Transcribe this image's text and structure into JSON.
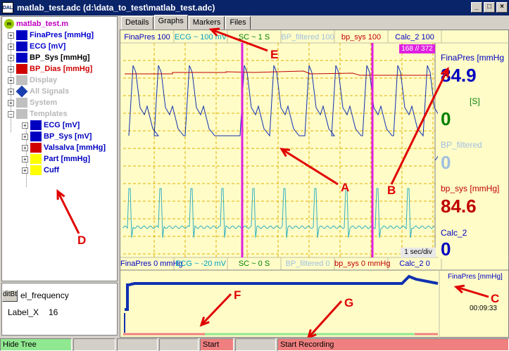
{
  "window": {
    "title": "matlab_test.adc  (d:\\data_to_test\\matlab_test.adc)",
    "app_icon": "app-icon",
    "minimize": "_",
    "maximize": "□",
    "close": "×"
  },
  "tree": {
    "root": "matlab_test.m",
    "items": [
      {
        "label": "FinaPres [mmHg]",
        "color": "#0000d0"
      },
      {
        "label": "ECG [mV]",
        "color": "#0000d0"
      },
      {
        "label": "BP_Sys [mmHg]",
        "color": "#000000"
      },
      {
        "label": "BP_Dias [mmHg]",
        "color": "#d00000"
      },
      {
        "label": "Display",
        "color": "#b8b8b8"
      },
      {
        "label": "All Signals",
        "color": "#b8b8b8"
      },
      {
        "label": "System",
        "color": "#b8b8b8"
      },
      {
        "label": "Templates",
        "color": "#b8b8b8"
      }
    ],
    "templates": [
      {
        "label": "ECG [mV]"
      },
      {
        "label": "BP_Sys [mV]"
      },
      {
        "label": "Valsalva [mmHg]"
      },
      {
        "label": "Part [mmHg]"
      },
      {
        "label": "Cuff"
      }
    ]
  },
  "left_bottom": {
    "edit_button": "ditBtn",
    "label_frequency": "el_frequency",
    "label_x_name": "Label_X",
    "label_x_value": "16"
  },
  "tabs": [
    "Details",
    "Graphs",
    "Markers",
    "Files"
  ],
  "active_tab": "Graphs",
  "top_headers": [
    {
      "label": "FinaPres 100",
      "color": "#0000c0"
    },
    {
      "label": "ECG ~ 100 mV",
      "color": "#00a0c0"
    },
    {
      "label": "SC ~ 1 S",
      "color": "#008000"
    },
    {
      "label": "BP_filtered 100",
      "color": "#a0c0e0"
    },
    {
      "label": "bp_sys 100",
      "color": "#c00000"
    },
    {
      "label": "Calc_2 100",
      "color": "#0000c0"
    }
  ],
  "bottom_headers": [
    {
      "label": "FinaPres 0 mmHg",
      "color": "#0000c0"
    },
    {
      "label": "ECG ~ -20 mV",
      "color": "#00a0c0"
    },
    {
      "label": "SC ~ 0 S",
      "color": "#008000"
    },
    {
      "label": "BP_filtered 0",
      "color": "#a0c0e0"
    },
    {
      "label": "bp_sys 0 mmHg",
      "color": "#c00000"
    },
    {
      "label": "Calc_2 0",
      "color": "#0000c0"
    }
  ],
  "counter": "168 // 372",
  "time_div": "1 sec/div",
  "readouts": {
    "finapres_label": "FinaPres [mmHg",
    "finapres_value": "84.9",
    "sc_unit": "[S]",
    "sc_value": "0",
    "bp_filtered_label": "BP_filtered",
    "bp_filtered_value": "0",
    "bp_sys_label": "bp_sys [mmHg]",
    "bp_sys_value": "84.6",
    "calc2_label": "Calc_2",
    "calc2_value": "0"
  },
  "overview": {
    "label": "FinaPres [mmHg]",
    "time": "00:09:33"
  },
  "annotations": [
    "A",
    "B",
    "C",
    "D",
    "E",
    "F",
    "G"
  ],
  "status": {
    "hide_tree": "Hide Tree",
    "start": "Start",
    "start_recording": "Start Recording"
  },
  "colors": {
    "plot_bg": "#fffcc8",
    "bp_trace": "#1030b0",
    "ecg_trace": "#30b0c0",
    "marker": "#e020e0",
    "sys_line": "#c00000",
    "annotation": "#e00000"
  }
}
